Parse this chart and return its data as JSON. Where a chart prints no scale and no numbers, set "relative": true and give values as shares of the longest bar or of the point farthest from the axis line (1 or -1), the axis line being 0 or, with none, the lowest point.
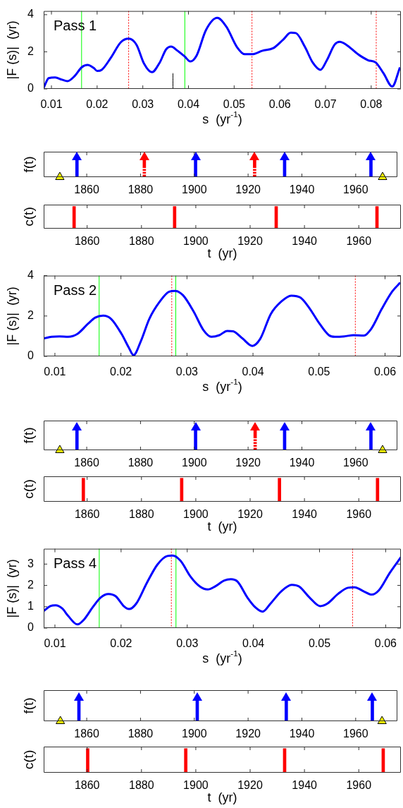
{
  "chart_data": [
    {
      "type": "line",
      "annotations": [
        "Pass 1"
      ],
      "xlabel": "s  (yr$^{-1}$)",
      "ylabel": "|F (s)|  (yr)",
      "xlim": [
        0.0083,
        0.0865
      ],
      "xticks": [
        0.01,
        0.02,
        0.03,
        0.04,
        0.05,
        0.06,
        0.07,
        0.08
      ],
      "ylim": [
        0,
        4.2
      ],
      "yticks": [
        0,
        2,
        4
      ],
      "series": [
        {
          "color": "#0000ff",
          "x": [
            0.0083,
            0.0094,
            0.0108,
            0.0123,
            0.0135,
            0.0151,
            0.0166,
            0.0179,
            0.0193,
            0.02,
            0.021,
            0.023,
            0.0252,
            0.0269,
            0.0286,
            0.0303,
            0.032,
            0.0337,
            0.0351,
            0.0362,
            0.0376,
            0.0392,
            0.0404,
            0.0418,
            0.0438,
            0.0463,
            0.0483,
            0.0506,
            0.0523,
            0.0539,
            0.0562,
            0.0585,
            0.0607,
            0.0624,
            0.0635,
            0.0655,
            0.0672,
            0.0689,
            0.0703,
            0.072,
            0.0731,
            0.0745,
            0.0771,
            0.0793,
            0.081,
            0.0827,
            0.0846,
            0.0863
          ],
          "values": [
            0.06,
            0.58,
            0.62,
            0.5,
            0.42,
            0.7,
            1.16,
            1.29,
            1.12,
            0.97,
            1.03,
            1.68,
            2.52,
            2.71,
            2.39,
            1.35,
            0.9,
            1.42,
            2.13,
            2.28,
            2.06,
            1.74,
            1.48,
            1.81,
            3.16,
            3.83,
            3.35,
            2.26,
            1.87,
            1.87,
            2.06,
            2.19,
            2.65,
            3.03,
            3.01,
            2.26,
            1.42,
            1.03,
            1.55,
            2.39,
            2.54,
            2.39,
            1.87,
            1.55,
            1.42,
            0.84,
            0.13,
            1.16
          ]
        },
        {
          "color": "#000000",
          "x": [
            0.0366,
            0.0366
          ],
          "values": [
            0,
            0.85
          ]
        }
      ],
      "ref_lines": [
        {
          "axis": "x",
          "value": 0.0166,
          "color": "#00ff00",
          "line_style": "solid"
        },
        {
          "axis": "x",
          "value": 0.0392,
          "color": "#00ff00",
          "line_style": "solid"
        },
        {
          "axis": "x",
          "value": 0.0269,
          "color": "#ff0000",
          "line_style": "dotted"
        },
        {
          "axis": "x",
          "value": 0.0539,
          "color": "#ff0000",
          "line_style": "dotted"
        },
        {
          "axis": "x",
          "value": 0.0811,
          "color": "#ff0000",
          "line_style": "dotted"
        }
      ]
    },
    {
      "type": "bar",
      "relative": true,
      "ylabel": "f(t)",
      "xlim": [
        1844,
        1975.5
      ],
      "xticks": [
        1860,
        1880,
        1900,
        1920,
        1940,
        1960
      ],
      "series": [
        {
          "color": "#0000ff",
          "marker": "triangle",
          "x": [
            1856.9,
            1901,
            1934.1,
            1966.2
          ],
          "values": [
            1,
            1,
            1,
            1
          ]
        },
        {
          "color": "#ff0000",
          "marker": "triangle",
          "line_style": "dotted",
          "x": [
            1880.9,
            1921.9
          ],
          "values": [
            1,
            1
          ]
        },
        {
          "type": "scatter",
          "color": "#ffff00",
          "marker": "triangle",
          "x": [
            1850,
            1970
          ],
          "values": [
            0,
            0
          ]
        }
      ]
    },
    {
      "type": "bar",
      "relative": true,
      "ylabel": "c(t)",
      "xlabel": "t  (yr)",
      "xlim": [
        1844,
        1975.5
      ],
      "xticks": [
        1860,
        1880,
        1900,
        1920,
        1940,
        1960
      ],
      "series": [
        {
          "color": "#ff0000",
          "x": [
            1855.2,
            1892.2,
            1929.6,
            1966.7
          ],
          "values": [
            1,
            1,
            1,
            1
          ]
        }
      ]
    },
    {
      "type": "line",
      "annotations": [
        "Pass 2"
      ],
      "xlabel": "s  (yr$^{-1}$)",
      "ylabel": "|F (s)|  (yr)",
      "xlim": [
        0.0083,
        0.0624
      ],
      "xticks": [
        0.01,
        0.02,
        0.03,
        0.04,
        0.05,
        0.06
      ],
      "ylim": [
        0,
        4
      ],
      "yticks": [
        0,
        2,
        4
      ],
      "series": [
        {
          "color": "#0000ff",
          "x": [
            0.0083,
            0.0095,
            0.0107,
            0.012,
            0.0134,
            0.015,
            0.0161,
            0.0173,
            0.0185,
            0.0201,
            0.0212,
            0.0219,
            0.023,
            0.0243,
            0.0259,
            0.0273,
            0.0282,
            0.0294,
            0.031,
            0.0325,
            0.0337,
            0.0349,
            0.0361,
            0.037,
            0.0384,
            0.0399,
            0.0411,
            0.0427,
            0.0443,
            0.0458,
            0.0472,
            0.0485,
            0.0501,
            0.0515,
            0.0524,
            0.0538,
            0.0552,
            0.0568,
            0.0579,
            0.0595,
            0.0611,
            0.0623
          ],
          "values": [
            0.89,
            0.97,
            0.99,
            0.97,
            1.11,
            1.61,
            1.92,
            2.02,
            1.86,
            1.11,
            0.43,
            0.06,
            0.74,
            1.86,
            2.72,
            3.2,
            3.24,
            3.03,
            2.23,
            1.3,
            0.97,
            1.05,
            1.26,
            1.24,
            0.89,
            0.52,
            0.87,
            2.1,
            2.72,
            3.01,
            2.91,
            2.41,
            1.61,
            1.05,
            0.97,
            0.99,
            1.05,
            1.03,
            1.36,
            2.35,
            3.22,
            3.65
          ]
        }
      ],
      "ref_lines": [
        {
          "axis": "x",
          "value": 0.0167,
          "color": "#00ff00",
          "line_style": "solid"
        },
        {
          "axis": "x",
          "value": 0.0283,
          "color": "#00ff00",
          "line_style": "solid"
        },
        {
          "axis": "x",
          "value": 0.0277,
          "color": "#ff0000",
          "line_style": "dotted"
        },
        {
          "axis": "x",
          "value": 0.0555,
          "color": "#ff0000",
          "line_style": "dotted"
        }
      ]
    },
    {
      "type": "bar",
      "relative": true,
      "ylabel": "f(t)",
      "xlim": [
        1844,
        1975.5
      ],
      "xticks": [
        1860,
        1880,
        1900,
        1920,
        1940,
        1960
      ],
      "series": [
        {
          "color": "#0000ff",
          "marker": "triangle",
          "x": [
            1856.9,
            1901,
            1934.1,
            1966.2
          ],
          "values": [
            1,
            1,
            1,
            1
          ]
        },
        {
          "color": "#ff0000",
          "marker": "triangle",
          "line_style": "dotted",
          "x": [
            1922.1
          ],
          "values": [
            1
          ]
        },
        {
          "type": "scatter",
          "color": "#ffff00",
          "marker": "triangle",
          "x": [
            1850,
            1970
          ],
          "values": [
            0,
            0
          ]
        }
      ]
    },
    {
      "type": "bar",
      "relative": true,
      "ylabel": "c(t)",
      "xlabel": "t  (yr)",
      "xlim": [
        1844,
        1975.5
      ],
      "xticks": [
        1860,
        1880,
        1900,
        1920,
        1940,
        1960
      ],
      "series": [
        {
          "color": "#ff0000",
          "x": [
            1858.6,
            1894.8,
            1930.8,
            1966.9
          ],
          "values": [
            1,
            1,
            1,
            1
          ]
        }
      ]
    },
    {
      "type": "line",
      "annotations": [
        "Pass 4"
      ],
      "xlabel": "s  (yr$^{-1}$)",
      "ylabel": "|F (s)|  (yr)",
      "xlim": [
        0.0083,
        0.0623
      ],
      "xticks": [
        0.01,
        0.02,
        0.03,
        0.04,
        0.05,
        0.06
      ],
      "ylim": [
        0,
        3.72
      ],
      "yticks": [
        0,
        1,
        2,
        3
      ],
      "series": [
        {
          "color": "#0000ff",
          "x": [
            0.0083,
            0.0093,
            0.0101,
            0.0111,
            0.012,
            0.0134,
            0.0144,
            0.0157,
            0.0169,
            0.0181,
            0.0192,
            0.0204,
            0.0212,
            0.0223,
            0.0239,
            0.0255,
            0.027,
            0.0278,
            0.029,
            0.0305,
            0.0319,
            0.0331,
            0.0342,
            0.0356,
            0.0366,
            0.0376,
            0.0391,
            0.0403,
            0.0414,
            0.0426,
            0.0442,
            0.0458,
            0.0469,
            0.0485,
            0.0501,
            0.0512,
            0.0528,
            0.0543,
            0.0553,
            0.0567,
            0.0579,
            0.059,
            0.0606,
            0.0623
          ],
          "values": [
            0.8,
            1.03,
            1.07,
            0.92,
            0.57,
            0.17,
            0.4,
            0.97,
            1.43,
            1.6,
            1.49,
            1.03,
            0.89,
            1.15,
            2.12,
            2.98,
            3.38,
            3.4,
            3.15,
            2.41,
            1.95,
            1.81,
            1.95,
            2.23,
            2.29,
            2.18,
            1.43,
            0.97,
            0.77,
            1.15,
            1.72,
            2.03,
            1.95,
            1.43,
            1.03,
            1.15,
            1.6,
            1.89,
            1.91,
            1.72,
            1.57,
            1.78,
            2.58,
            3.32
          ]
        }
      ],
      "ref_lines": [
        {
          "axis": "x",
          "value": 0.0167,
          "color": "#00ff00",
          "line_style": "solid"
        },
        {
          "axis": "x",
          "value": 0.0283,
          "color": "#00ff00",
          "line_style": "solid"
        },
        {
          "axis": "x",
          "value": 0.0276,
          "color": "#ff0000",
          "line_style": "dotted"
        },
        {
          "axis": "x",
          "value": 0.055,
          "color": "#ff0000",
          "line_style": "dotted"
        }
      ]
    },
    {
      "type": "bar",
      "relative": true,
      "ylabel": "f(t)",
      "xlim": [
        1844,
        1975.5
      ],
      "xticks": [
        1860,
        1880,
        1900,
        1920,
        1940,
        1960
      ],
      "series": [
        {
          "color": "#0000ff",
          "marker": "triangle",
          "x": [
            1857.1,
            1901.1,
            1934.2,
            1966.2
          ],
          "values": [
            1,
            1,
            1,
            1
          ]
        },
        {
          "type": "scatter",
          "color": "#ffff00",
          "marker": "triangle",
          "x": [
            1850.2,
            1969.8
          ],
          "values": [
            0,
            0
          ]
        }
      ]
    },
    {
      "type": "bar",
      "relative": true,
      "ylabel": "c(t)",
      "xlabel": "t  (yr)",
      "xlim": [
        1844,
        1975.5
      ],
      "xticks": [
        1860,
        1880,
        1900,
        1920,
        1940,
        1960
      ],
      "series": [
        {
          "color": "#ff0000",
          "x": [
            1860.2,
            1896.3,
            1932.7,
            1969
          ],
          "values": [
            1,
            1,
            1,
            1
          ]
        }
      ]
    }
  ]
}
